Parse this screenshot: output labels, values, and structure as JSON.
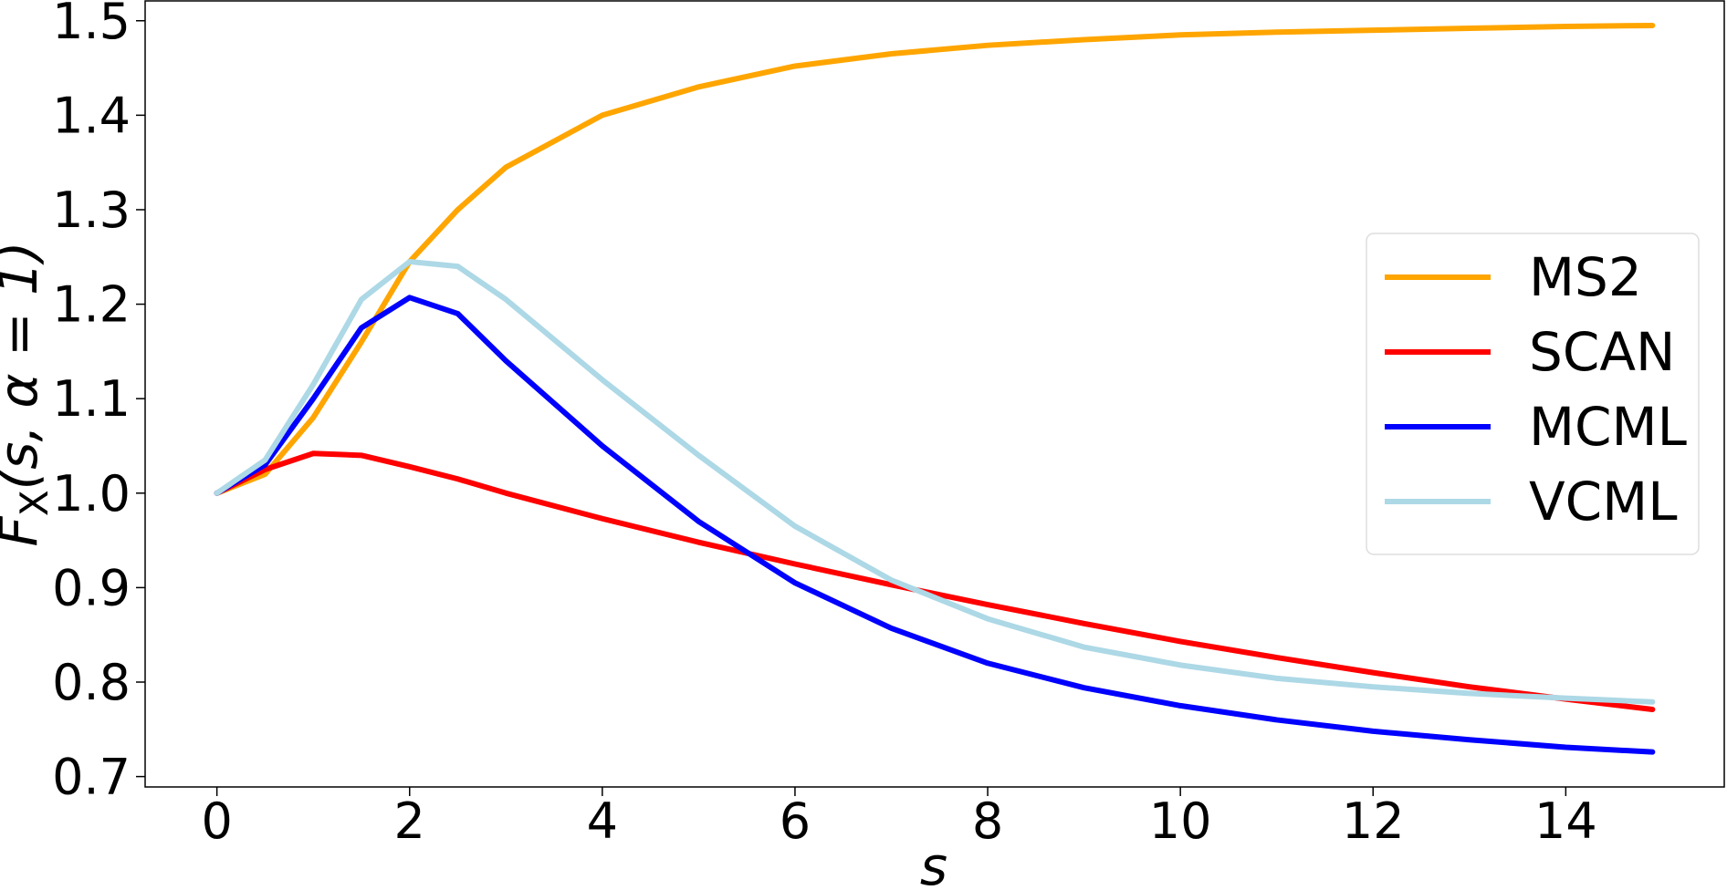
{
  "chart_data": {
    "type": "line",
    "xlabel": "s",
    "ylabel": [
      "F",
      "X",
      "(s, α = 1)"
    ],
    "x": [
      0,
      0.5,
      1,
      1.5,
      2,
      2.5,
      3,
      4,
      5,
      6,
      7,
      8,
      9,
      10,
      11,
      12,
      13,
      14,
      14.9
    ],
    "series": [
      {
        "name": "MS2",
        "color": "#ffa500",
        "values": [
          1.0,
          1.02,
          1.08,
          1.16,
          1.245,
          1.3,
          1.345,
          1.4,
          1.43,
          1.452,
          1.465,
          1.474,
          1.48,
          1.485,
          1.488,
          1.49,
          1.492,
          1.494,
          1.495
        ]
      },
      {
        "name": "SCAN",
        "color": "#ff0000",
        "values": [
          1.0,
          1.025,
          1.042,
          1.04,
          1.028,
          1.015,
          1.0,
          0.973,
          0.948,
          0.925,
          0.903,
          0.882,
          0.862,
          0.843,
          0.826,
          0.81,
          0.795,
          0.782,
          0.771
        ]
      },
      {
        "name": "MCML",
        "color": "#0000ff",
        "values": [
          1.0,
          1.03,
          1.1,
          1.175,
          1.207,
          1.19,
          1.14,
          1.05,
          0.97,
          0.905,
          0.857,
          0.82,
          0.794,
          0.775,
          0.76,
          0.748,
          0.739,
          0.731,
          0.726
        ]
      },
      {
        "name": "VCML",
        "color": "#add8e6",
        "values": [
          1.0,
          1.035,
          1.115,
          1.205,
          1.245,
          1.24,
          1.205,
          1.12,
          1.04,
          0.965,
          0.908,
          0.867,
          0.837,
          0.818,
          0.804,
          0.795,
          0.788,
          0.783,
          0.779
        ]
      }
    ],
    "xlim": [
      -0.745,
      15.645
    ],
    "ylim": [
      0.689,
      1.521
    ],
    "xticks": [
      0,
      2,
      4,
      6,
      8,
      10,
      12,
      14
    ],
    "yticks": [
      {
        "value": 0.7,
        "label": "0.7"
      },
      {
        "value": 0.8,
        "label": "0.8"
      },
      {
        "value": 0.9,
        "label": "0.9"
      },
      {
        "value": 1.0,
        "label": "1.0"
      },
      {
        "value": 1.1,
        "label": "1.1"
      },
      {
        "value": 1.2,
        "label": "1.2"
      },
      {
        "value": 1.3,
        "label": "1.3"
      },
      {
        "value": 1.4,
        "label": "1.4"
      },
      {
        "value": 1.5,
        "label": "1.5"
      }
    ],
    "grid": false,
    "legend": "right"
  }
}
